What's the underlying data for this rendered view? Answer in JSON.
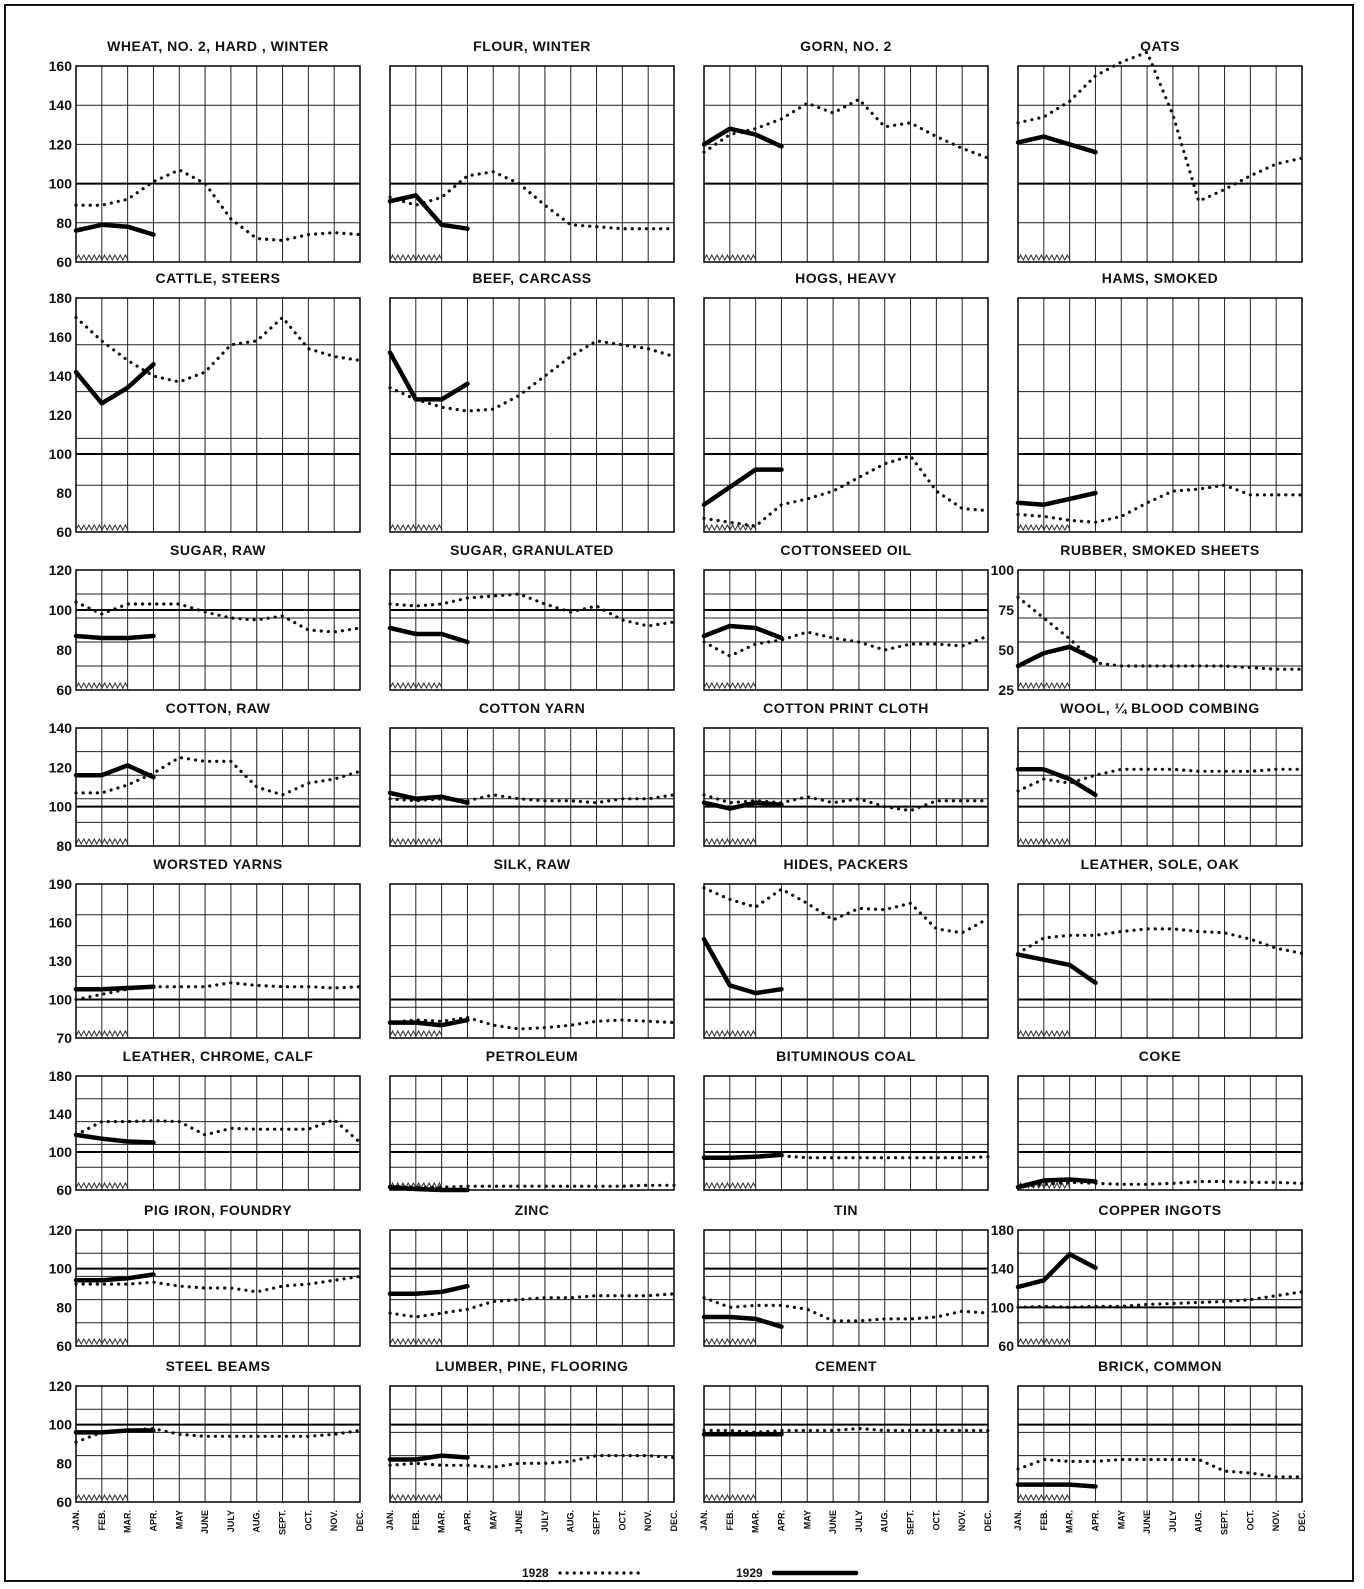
{
  "months": [
    "JAN.",
    "FEB.",
    "MAR.",
    "APR.",
    "MAY",
    "JUNE",
    "JULY",
    "AUG.",
    "SEPT.",
    "OCT.",
    "NOV.",
    "DEC."
  ],
  "legend": {
    "label_1928": "1928",
    "label_1929": "1929"
  },
  "chart_data": [
    {
      "type": "line",
      "title": "WHEAT, NO. 2, HARD , WINTER",
      "ylim": [
        60,
        160
      ],
      "yticks": [
        60,
        80,
        100,
        120,
        140,
        160
      ],
      "series": [
        {
          "name": "1928",
          "values": [
            89,
            89,
            92,
            101,
            107,
            100,
            82,
            72,
            71,
            74,
            75,
            74
          ]
        },
        {
          "name": "1929",
          "values": [
            76,
            79,
            78,
            74
          ]
        }
      ]
    },
    {
      "type": "line",
      "title": "FLOUR, WINTER",
      "ylim": [
        60,
        160
      ],
      "yticks": [],
      "series": [
        {
          "name": "1928",
          "values": [
            93,
            89,
            93,
            104,
            106,
            100,
            89,
            79,
            78,
            77,
            77,
            77
          ]
        },
        {
          "name": "1929",
          "values": [
            91,
            94,
            79,
            77
          ]
        }
      ]
    },
    {
      "type": "line",
      "title": "GORN, NO. 2",
      "ylim": [
        60,
        160
      ],
      "yticks": [],
      "series": [
        {
          "name": "1928",
          "values": [
            116,
            125,
            128,
            133,
            141,
            136,
            143,
            129,
            131,
            124,
            118,
            113
          ]
        },
        {
          "name": "1929",
          "values": [
            120,
            128,
            125,
            119
          ]
        }
      ]
    },
    {
      "type": "line",
      "title": "OATS",
      "ylim": [
        60,
        160
      ],
      "yticks": [],
      "series": [
        {
          "name": "1928",
          "values": [
            131,
            134,
            142,
            155,
            162,
            167,
            135,
            91,
            97,
            104,
            110,
            113
          ]
        },
        {
          "name": "1929",
          "values": [
            121,
            124,
            120,
            116
          ]
        }
      ]
    },
    {
      "type": "line",
      "title": "CATTLE, STEERS",
      "ylim": [
        60,
        180
      ],
      "yticks": [
        60,
        80,
        100,
        120,
        140,
        160,
        180
      ],
      "series": [
        {
          "name": "1928",
          "values": [
            170,
            158,
            148,
            140,
            137,
            142,
            156,
            158,
            170,
            154,
            150,
            148
          ]
        },
        {
          "name": "1929",
          "values": [
            142,
            126,
            134,
            146
          ]
        }
      ]
    },
    {
      "type": "line",
      "title": "BEEF, CARCASS",
      "ylim": [
        60,
        180
      ],
      "yticks": [],
      "series": [
        {
          "name": "1928",
          "values": [
            134,
            128,
            124,
            122,
            123,
            130,
            140,
            150,
            158,
            156,
            154,
            150
          ]
        },
        {
          "name": "1929",
          "values": [
            152,
            128,
            128,
            136
          ]
        }
      ]
    },
    {
      "type": "line",
      "title": "HOGS, HEAVY",
      "ylim": [
        60,
        180
      ],
      "yticks": [],
      "series": [
        {
          "name": "1928",
          "values": [
            67,
            65,
            63,
            74,
            77,
            81,
            88,
            95,
            99,
            81,
            72,
            71
          ]
        },
        {
          "name": "1929",
          "values": [
            74,
            83,
            92,
            92
          ]
        }
      ]
    },
    {
      "type": "line",
      "title": "HAMS, SMOKED",
      "ylim": [
        60,
        180
      ],
      "yticks": [],
      "series": [
        {
          "name": "1928",
          "values": [
            69,
            68,
            66,
            65,
            68,
            75,
            81,
            82,
            84,
            79,
            79,
            79
          ]
        },
        {
          "name": "1929",
          "values": [
            75,
            74,
            77,
            80
          ]
        }
      ]
    },
    {
      "type": "line",
      "title": "SUGAR, RAW",
      "ylim": [
        60,
        120
      ],
      "yticks": [
        60,
        80,
        100,
        120
      ],
      "series": [
        {
          "name": "1928",
          "values": [
            104,
            98,
            103,
            103,
            103,
            99,
            96,
            95,
            97,
            90,
            89,
            91
          ]
        },
        {
          "name": "1929",
          "values": [
            87,
            86,
            86,
            87
          ]
        }
      ]
    },
    {
      "type": "line",
      "title": "SUGAR, GRANULATED",
      "ylim": [
        60,
        120
      ],
      "yticks": [],
      "series": [
        {
          "name": "1928",
          "values": [
            103,
            102,
            103,
            106,
            107,
            108,
            103,
            99,
            102,
            95,
            92,
            94
          ]
        },
        {
          "name": "1929",
          "values": [
            91,
            88,
            88,
            84
          ]
        }
      ]
    },
    {
      "type": "line",
      "title": "COTTONSEED OIL",
      "ylim": [
        60,
        120
      ],
      "yticks": [],
      "series": [
        {
          "name": "1928",
          "values": [
            84,
            77,
            83,
            85,
            89,
            86,
            84,
            80,
            83,
            83,
            82,
            87
          ]
        },
        {
          "name": "1929",
          "values": [
            87,
            92,
            91,
            86
          ]
        }
      ]
    },
    {
      "type": "line",
      "title": "RUBBER, SMOKED SHEETS",
      "ylim": [
        25,
        100
      ],
      "yticks": [
        25,
        50,
        75,
        100
      ],
      "series": [
        {
          "name": "1928",
          "values": [
            83,
            70,
            57,
            42,
            40,
            40,
            40,
            40,
            40,
            39,
            38,
            38
          ]
        },
        {
          "name": "1929",
          "values": [
            40,
            48,
            52,
            44
          ]
        }
      ]
    },
    {
      "type": "line",
      "title": "COTTON, RAW",
      "ylim": [
        80,
        140
      ],
      "yticks": [
        80,
        100,
        120,
        140
      ],
      "series": [
        {
          "name": "1928",
          "values": [
            107,
            107,
            111,
            117,
            125,
            123,
            123,
            110,
            106,
            112,
            114,
            118
          ]
        },
        {
          "name": "1929",
          "values": [
            116,
            116,
            121,
            115
          ]
        }
      ]
    },
    {
      "type": "line",
      "title": "COTTON YARN",
      "ylim": [
        80,
        140
      ],
      "yticks": [],
      "series": [
        {
          "name": "1928",
          "values": [
            104,
            103,
            104,
            103,
            106,
            104,
            103,
            103,
            102,
            104,
            104,
            106
          ]
        },
        {
          "name": "1929",
          "values": [
            107,
            104,
            105,
            102
          ]
        }
      ]
    },
    {
      "type": "line",
      "title": "COTTON PRINT CLOTH",
      "ylim": [
        80,
        140
      ],
      "yticks": [],
      "series": [
        {
          "name": "1928",
          "values": [
            106,
            102,
            103,
            102,
            105,
            102,
            104,
            100,
            98,
            103,
            103,
            103
          ]
        },
        {
          "name": "1929",
          "values": [
            102,
            99,
            102,
            101
          ]
        }
      ]
    },
    {
      "type": "line",
      "title": "WOOL, ¼ BLOOD COMBING",
      "ylim": [
        80,
        140
      ],
      "yticks": [],
      "series": [
        {
          "name": "1928",
          "values": [
            108,
            114,
            112,
            116,
            119,
            119,
            119,
            118,
            118,
            118,
            119,
            119
          ]
        },
        {
          "name": "1929",
          "values": [
            119,
            119,
            114,
            106
          ]
        }
      ]
    },
    {
      "type": "line",
      "title": "WORSTED YARNS",
      "ylim": [
        70,
        190
      ],
      "yticks": [
        70,
        100,
        130,
        160,
        190
      ],
      "series": [
        {
          "name": "1928",
          "values": [
            100,
            104,
            108,
            110,
            110,
            110,
            113,
            111,
            110,
            110,
            109,
            110
          ]
        },
        {
          "name": "1929",
          "values": [
            108,
            108,
            109,
            110
          ]
        }
      ]
    },
    {
      "type": "line",
      "title": "SILK, RAW",
      "ylim": [
        70,
        190
      ],
      "yticks": [],
      "series": [
        {
          "name": "1928",
          "values": [
            82,
            84,
            83,
            86,
            80,
            77,
            78,
            80,
            83,
            84,
            83,
            82
          ]
        },
        {
          "name": "1929",
          "values": [
            82,
            82,
            80,
            84
          ]
        }
      ]
    },
    {
      "type": "line",
      "title": "HIDES, PACKERS",
      "ylim": [
        70,
        190
      ],
      "yticks": [],
      "series": [
        {
          "name": "1928",
          "values": [
            187,
            178,
            172,
            186,
            175,
            162,
            171,
            170,
            175,
            155,
            152,
            163
          ]
        },
        {
          "name": "1929",
          "values": [
            147,
            111,
            105,
            108
          ]
        }
      ]
    },
    {
      "type": "line",
      "title": "LEATHER, SOLE, OAK",
      "ylim": [
        70,
        190
      ],
      "yticks": [],
      "series": [
        {
          "name": "1928",
          "values": [
            136,
            148,
            150,
            150,
            153,
            155,
            155,
            153,
            152,
            147,
            140,
            136
          ]
        },
        {
          "name": "1929",
          "values": [
            135,
            131,
            127,
            113
          ]
        }
      ]
    },
    {
      "type": "line",
      "title": "LEATHER, CHROME, CALF",
      "ylim": [
        60,
        180
      ],
      "yticks": [
        60,
        100,
        140,
        180
      ],
      "series": [
        {
          "name": "1928",
          "values": [
            118,
            132,
            132,
            133,
            132,
            118,
            125,
            124,
            124,
            124,
            134,
            110
          ]
        },
        {
          "name": "1929",
          "values": [
            118,
            114,
            111,
            110
          ]
        }
      ]
    },
    {
      "type": "line",
      "title": "PETROLEUM",
      "ylim": [
        60,
        180
      ],
      "yticks": [],
      "series": [
        {
          "name": "1928",
          "values": [
            64,
            63,
            63,
            64,
            64,
            64,
            64,
            64,
            64,
            64,
            65,
            65
          ]
        },
        {
          "name": "1929",
          "values": [
            63,
            61,
            60,
            60
          ]
        }
      ]
    },
    {
      "type": "line",
      "title": "BITUMINOUS COAL",
      "ylim": [
        60,
        180
      ],
      "yticks": [],
      "series": [
        {
          "name": "1928",
          "values": [
            95,
            94,
            96,
            96,
            94,
            94,
            94,
            94,
            94,
            94,
            94,
            95
          ]
        },
        {
          "name": "1929",
          "values": [
            94,
            94,
            95,
            97
          ]
        }
      ]
    },
    {
      "type": "line",
      "title": "COKE",
      "ylim": [
        60,
        180
      ],
      "yticks": [],
      "series": [
        {
          "name": "1928",
          "values": [
            63,
            66,
            68,
            67,
            66,
            66,
            67,
            69,
            69,
            68,
            68,
            67
          ]
        },
        {
          "name": "1929",
          "values": [
            63,
            70,
            71,
            69
          ]
        }
      ]
    },
    {
      "type": "line",
      "title": "PIG IRON, FOUNDRY",
      "ylim": [
        60,
        120
      ],
      "yticks": [
        60,
        80,
        100,
        120
      ],
      "series": [
        {
          "name": "1928",
          "values": [
            92,
            92,
            92,
            93,
            91,
            90,
            90,
            88,
            91,
            92,
            94,
            96
          ]
        },
        {
          "name": "1929",
          "values": [
            94,
            94,
            95,
            97
          ]
        }
      ]
    },
    {
      "type": "line",
      "title": "ZINC",
      "ylim": [
        60,
        120
      ],
      "yticks": [],
      "series": [
        {
          "name": "1928",
          "values": [
            77,
            75,
            77,
            79,
            83,
            84,
            85,
            85,
            86,
            86,
            86,
            87
          ]
        },
        {
          "name": "1929",
          "values": [
            87,
            87,
            88,
            91
          ]
        }
      ]
    },
    {
      "type": "line",
      "title": "TIN",
      "ylim": [
        60,
        120
      ],
      "yticks": [],
      "series": [
        {
          "name": "1928",
          "values": [
            85,
            80,
            81,
            81,
            79,
            73,
            73,
            74,
            74,
            75,
            78,
            77
          ]
        },
        {
          "name": "1929",
          "values": [
            75,
            75,
            74,
            70
          ]
        }
      ]
    },
    {
      "type": "line",
      "title": "COPPER INGOTS",
      "ylim": [
        60,
        180
      ],
      "yticks": [
        60,
        100,
        140,
        180
      ],
      "series": [
        {
          "name": "1928",
          "values": [
            100,
            101,
            100,
            101,
            101,
            103,
            104,
            105,
            106,
            108,
            112,
            116
          ]
        },
        {
          "name": "1929",
          "values": [
            121,
            128,
            155,
            141
          ]
        }
      ]
    },
    {
      "type": "line",
      "title": "STEEL BEAMS",
      "ylim": [
        60,
        120
      ],
      "yticks": [
        60,
        80,
        100,
        120
      ],
      "series": [
        {
          "name": "1928",
          "values": [
            91,
            96,
            97,
            98,
            95,
            94,
            94,
            94,
            94,
            94,
            95,
            97
          ]
        },
        {
          "name": "1929",
          "values": [
            96,
            96,
            97,
            97
          ]
        }
      ]
    },
    {
      "type": "line",
      "title": "LUMBER, PINE, FLOORING",
      "ylim": [
        60,
        120
      ],
      "yticks": [],
      "series": [
        {
          "name": "1928",
          "values": [
            79,
            80,
            79,
            79,
            78,
            80,
            80,
            81,
            84,
            84,
            84,
            83
          ]
        },
        {
          "name": "1929",
          "values": [
            82,
            82,
            84,
            83
          ]
        }
      ]
    },
    {
      "type": "line",
      "title": "CEMENT",
      "ylim": [
        60,
        120
      ],
      "yticks": [],
      "series": [
        {
          "name": "1928",
          "values": [
            97,
            97,
            96,
            97,
            97,
            97,
            98,
            97,
            97,
            97,
            97,
            97
          ]
        },
        {
          "name": "1929",
          "values": [
            95,
            95,
            95,
            95
          ]
        }
      ]
    },
    {
      "type": "line",
      "title": "BRICK, COMMON",
      "ylim": [
        60,
        120
      ],
      "yticks": [],
      "series": [
        {
          "name": "1928",
          "values": [
            77,
            82,
            81,
            81,
            82,
            82,
            82,
            82,
            76,
            75,
            73,
            73
          ]
        },
        {
          "name": "1929",
          "values": [
            69,
            69,
            69,
            68
          ]
        }
      ]
    }
  ]
}
